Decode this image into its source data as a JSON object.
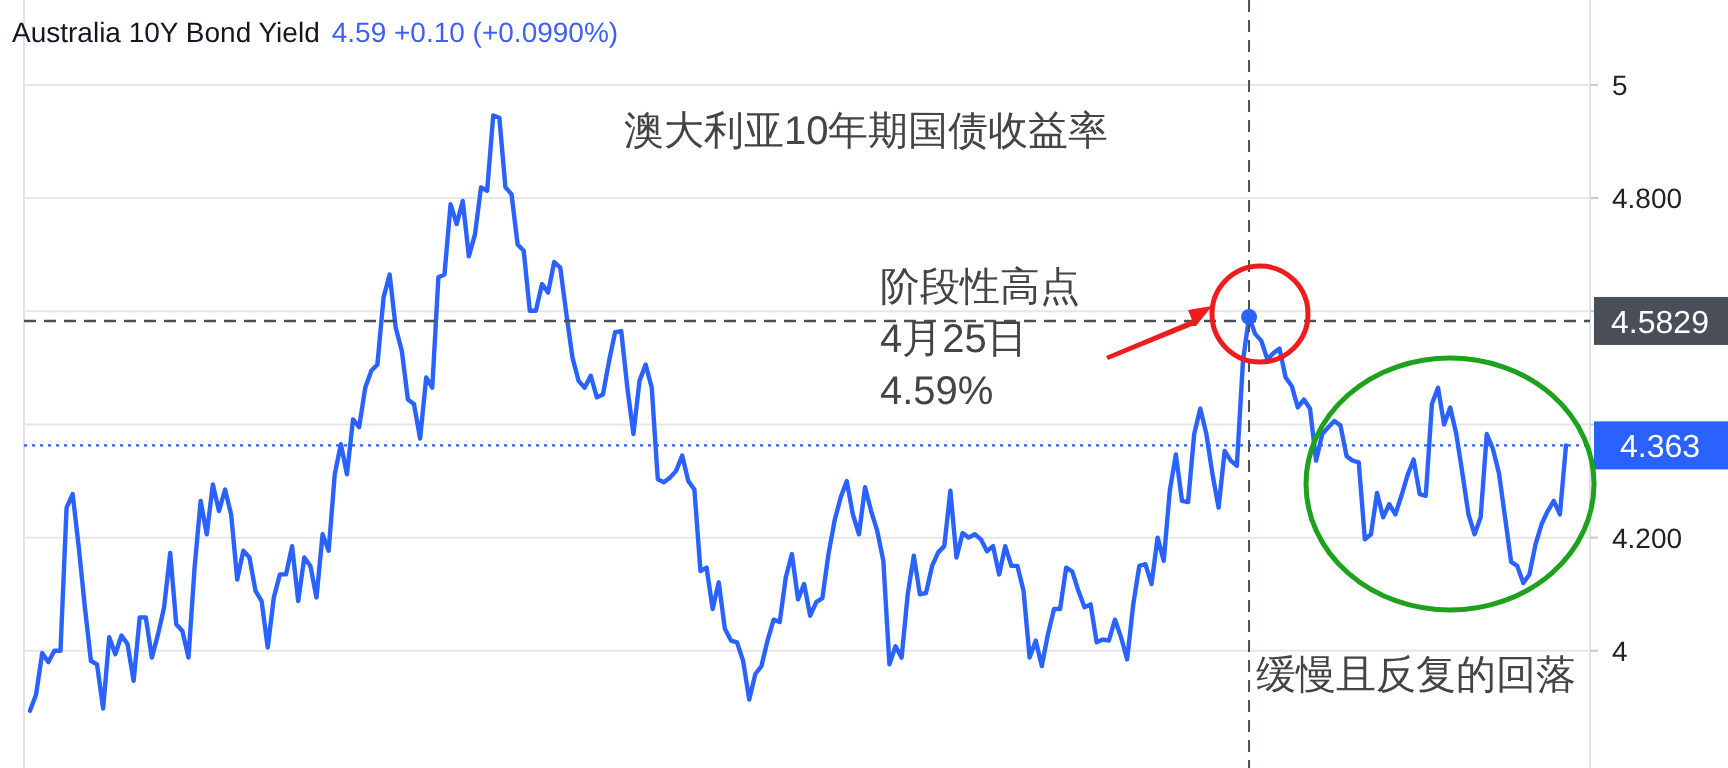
{
  "chart_data": {
    "type": "line",
    "title": "Australia 10Y Bond Yield",
    "subtitle": "4.59  +0.10 (+0.0990%)",
    "annotations": [
      "澳大利亚10年期国债收益率",
      "阶段性高点\n4月25日\n4.59%",
      "缓慢且反复的回落"
    ],
    "categories": [
      null,
      null,
      null,
      null,
      null,
      null,
      null,
      null,
      null,
      null,
      null,
      null,
      null,
      null,
      null,
      null,
      null,
      null,
      null,
      null,
      null,
      null,
      null,
      null,
      null,
      null,
      null,
      null,
      null,
      null,
      null,
      null,
      null,
      null,
      null,
      null,
      null,
      null,
      null,
      null,
      null,
      null,
      null,
      null,
      null,
      null,
      null,
      null,
      null,
      null,
      null,
      null,
      null,
      null,
      null,
      null,
      null,
      null,
      null,
      null,
      null,
      null,
      null,
      null,
      null,
      null,
      null,
      null,
      null,
      null,
      null,
      null,
      null,
      null,
      null,
      null,
      null,
      null,
      null,
      null,
      null,
      null,
      null,
      null,
      null,
      null,
      null,
      null,
      null,
      null,
      null,
      null,
      null,
      null,
      null,
      null,
      null,
      null,
      null,
      null,
      null,
      null,
      null,
      null,
      null,
      null,
      null,
      null,
      null,
      null,
      null,
      null,
      null,
      null,
      null,
      null,
      null,
      null,
      null,
      null,
      null,
      null,
      null,
      null,
      null,
      null,
      null,
      null,
      null,
      null,
      null,
      null,
      null,
      null,
      null,
      null,
      null,
      null,
      null,
      null,
      null,
      null,
      null,
      null,
      null,
      null,
      null,
      null,
      null,
      null,
      null,
      null,
      null,
      null,
      null,
      null,
      null,
      null,
      null,
      null,
      null,
      null,
      null,
      null,
      null,
      null,
      null,
      null,
      null,
      null,
      null,
      null,
      null,
      null,
      null,
      null,
      null,
      null,
      null,
      null,
      null,
      null,
      null,
      null,
      null,
      null,
      null,
      null,
      null,
      null,
      null,
      null,
      null,
      null,
      null,
      null,
      null,
      null,
      null,
      null,
      null,
      null,
      null,
      null,
      null,
      null,
      null,
      null,
      null,
      null,
      null,
      null,
      null,
      null,
      null,
      null,
      null,
      null,
      null,
      null,
      null,
      null,
      null,
      null,
      null,
      null,
      null,
      null,
      null,
      null,
      null,
      null,
      null,
      null,
      null,
      null,
      null,
      null,
      null,
      null,
      null,
      null,
      null,
      null,
      null,
      null,
      null,
      null,
      null,
      null,
      null,
      null,
      null
    ],
    "series": [
      {
        "color": "#2962ff",
        "values": [
          3.894,
          3.923,
          3.996,
          3.98,
          4.0,
          4.0,
          4.253,
          4.277,
          4.183,
          4.077,
          3.982,
          3.976,
          3.898,
          4.024,
          3.994,
          4.027,
          4.012,
          3.947,
          4.059,
          4.059,
          3.988,
          4.029,
          4.077,
          4.173,
          4.047,
          4.035,
          3.988,
          4.147,
          4.265,
          4.206,
          4.294,
          4.247,
          4.285,
          4.241,
          4.126,
          4.177,
          4.165,
          4.106,
          4.088,
          4.006,
          4.094,
          4.135,
          4.135,
          4.185,
          4.088,
          4.165,
          4.15,
          4.094,
          4.206,
          4.177,
          4.312,
          4.365,
          4.312,
          4.409,
          4.395,
          4.465,
          4.495,
          4.506,
          4.624,
          4.665,
          4.571,
          4.53,
          4.444,
          4.436,
          4.375,
          4.483,
          4.465,
          4.66,
          4.665,
          4.789,
          4.754,
          4.795,
          4.697,
          4.736,
          4.819,
          4.813,
          4.946,
          4.942,
          4.819,
          4.807,
          4.718,
          4.707,
          4.601,
          4.601,
          4.648,
          4.633,
          4.687,
          4.677,
          4.595,
          4.518,
          4.477,
          4.465,
          4.486,
          4.448,
          4.453,
          4.512,
          4.563,
          4.565,
          4.465,
          4.383,
          4.477,
          4.506,
          4.465,
          4.303,
          4.298,
          4.306,
          4.318,
          4.345,
          4.3,
          4.285,
          4.141,
          4.147,
          4.074,
          4.121,
          4.039,
          4.018,
          4.015,
          3.982,
          3.914,
          3.959,
          3.973,
          4.018,
          4.055,
          4.051,
          4.13,
          4.171,
          4.091,
          4.118,
          4.062,
          4.086,
          4.093,
          4.171,
          4.23,
          4.271,
          4.3,
          4.241,
          4.206,
          4.289,
          4.247,
          4.212,
          4.159,
          3.976,
          4.008,
          3.988,
          4.1,
          4.168,
          4.1,
          4.102,
          4.15,
          4.174,
          4.185,
          4.283,
          4.165,
          4.208,
          4.2,
          4.206,
          4.197,
          4.176,
          4.185,
          4.135,
          4.185,
          4.15,
          4.15,
          4.106,
          3.988,
          4.018,
          3.973,
          4.029,
          4.074,
          4.074,
          4.147,
          4.14,
          4.106,
          4.077,
          4.082,
          4.015,
          4.02,
          4.018,
          4.055,
          4.024,
          3.985,
          4.082,
          4.15,
          4.153,
          4.118,
          4.2,
          4.159,
          4.283,
          4.347,
          4.265,
          4.263,
          4.383,
          4.428,
          4.383,
          4.312,
          4.253,
          4.353,
          4.336,
          4.327,
          4.512,
          4.59,
          4.56,
          4.548,
          4.515,
          4.526,
          4.534,
          4.483,
          4.468,
          4.43,
          4.444,
          4.428,
          4.336,
          4.383,
          4.395,
          4.406,
          4.398,
          4.344,
          4.336,
          4.333,
          4.197,
          4.206,
          4.279,
          4.236,
          4.259,
          4.241,
          4.274,
          4.31,
          4.338,
          4.277,
          4.274,
          4.436,
          4.465,
          4.4,
          4.43,
          4.383,
          4.314,
          4.241,
          4.206,
          4.236,
          4.383,
          4.357,
          4.314,
          4.236,
          4.157,
          4.15,
          4.12,
          4.135,
          4.188,
          4.224,
          4.247,
          4.265,
          4.241,
          4.363
        ]
      }
    ],
    "ylim": [
      3.8,
      5.15
    ],
    "yticks": [
      4,
      {
        "value": 4.2,
        "label": "4.200"
      },
      {
        "value": 4.4,
        "label": null
      },
      {
        "value": 4.6,
        "label": null
      },
      {
        "value": 4.8,
        "label": "4.800"
      },
      5
    ],
    "ref_lines": [
      {
        "axis": "y",
        "value": 4.5829,
        "label": "4.5829",
        "color": "#4a4e59",
        "line_style": "dashed"
      },
      {
        "axis": "y",
        "value": 4.363,
        "label": "4.363",
        "color": "#2962ff",
        "line_style": "dotted"
      }
    ],
    "grid": "y",
    "tick_labels": "y",
    "marker": "none",
    "line_style": "solid"
  }
}
